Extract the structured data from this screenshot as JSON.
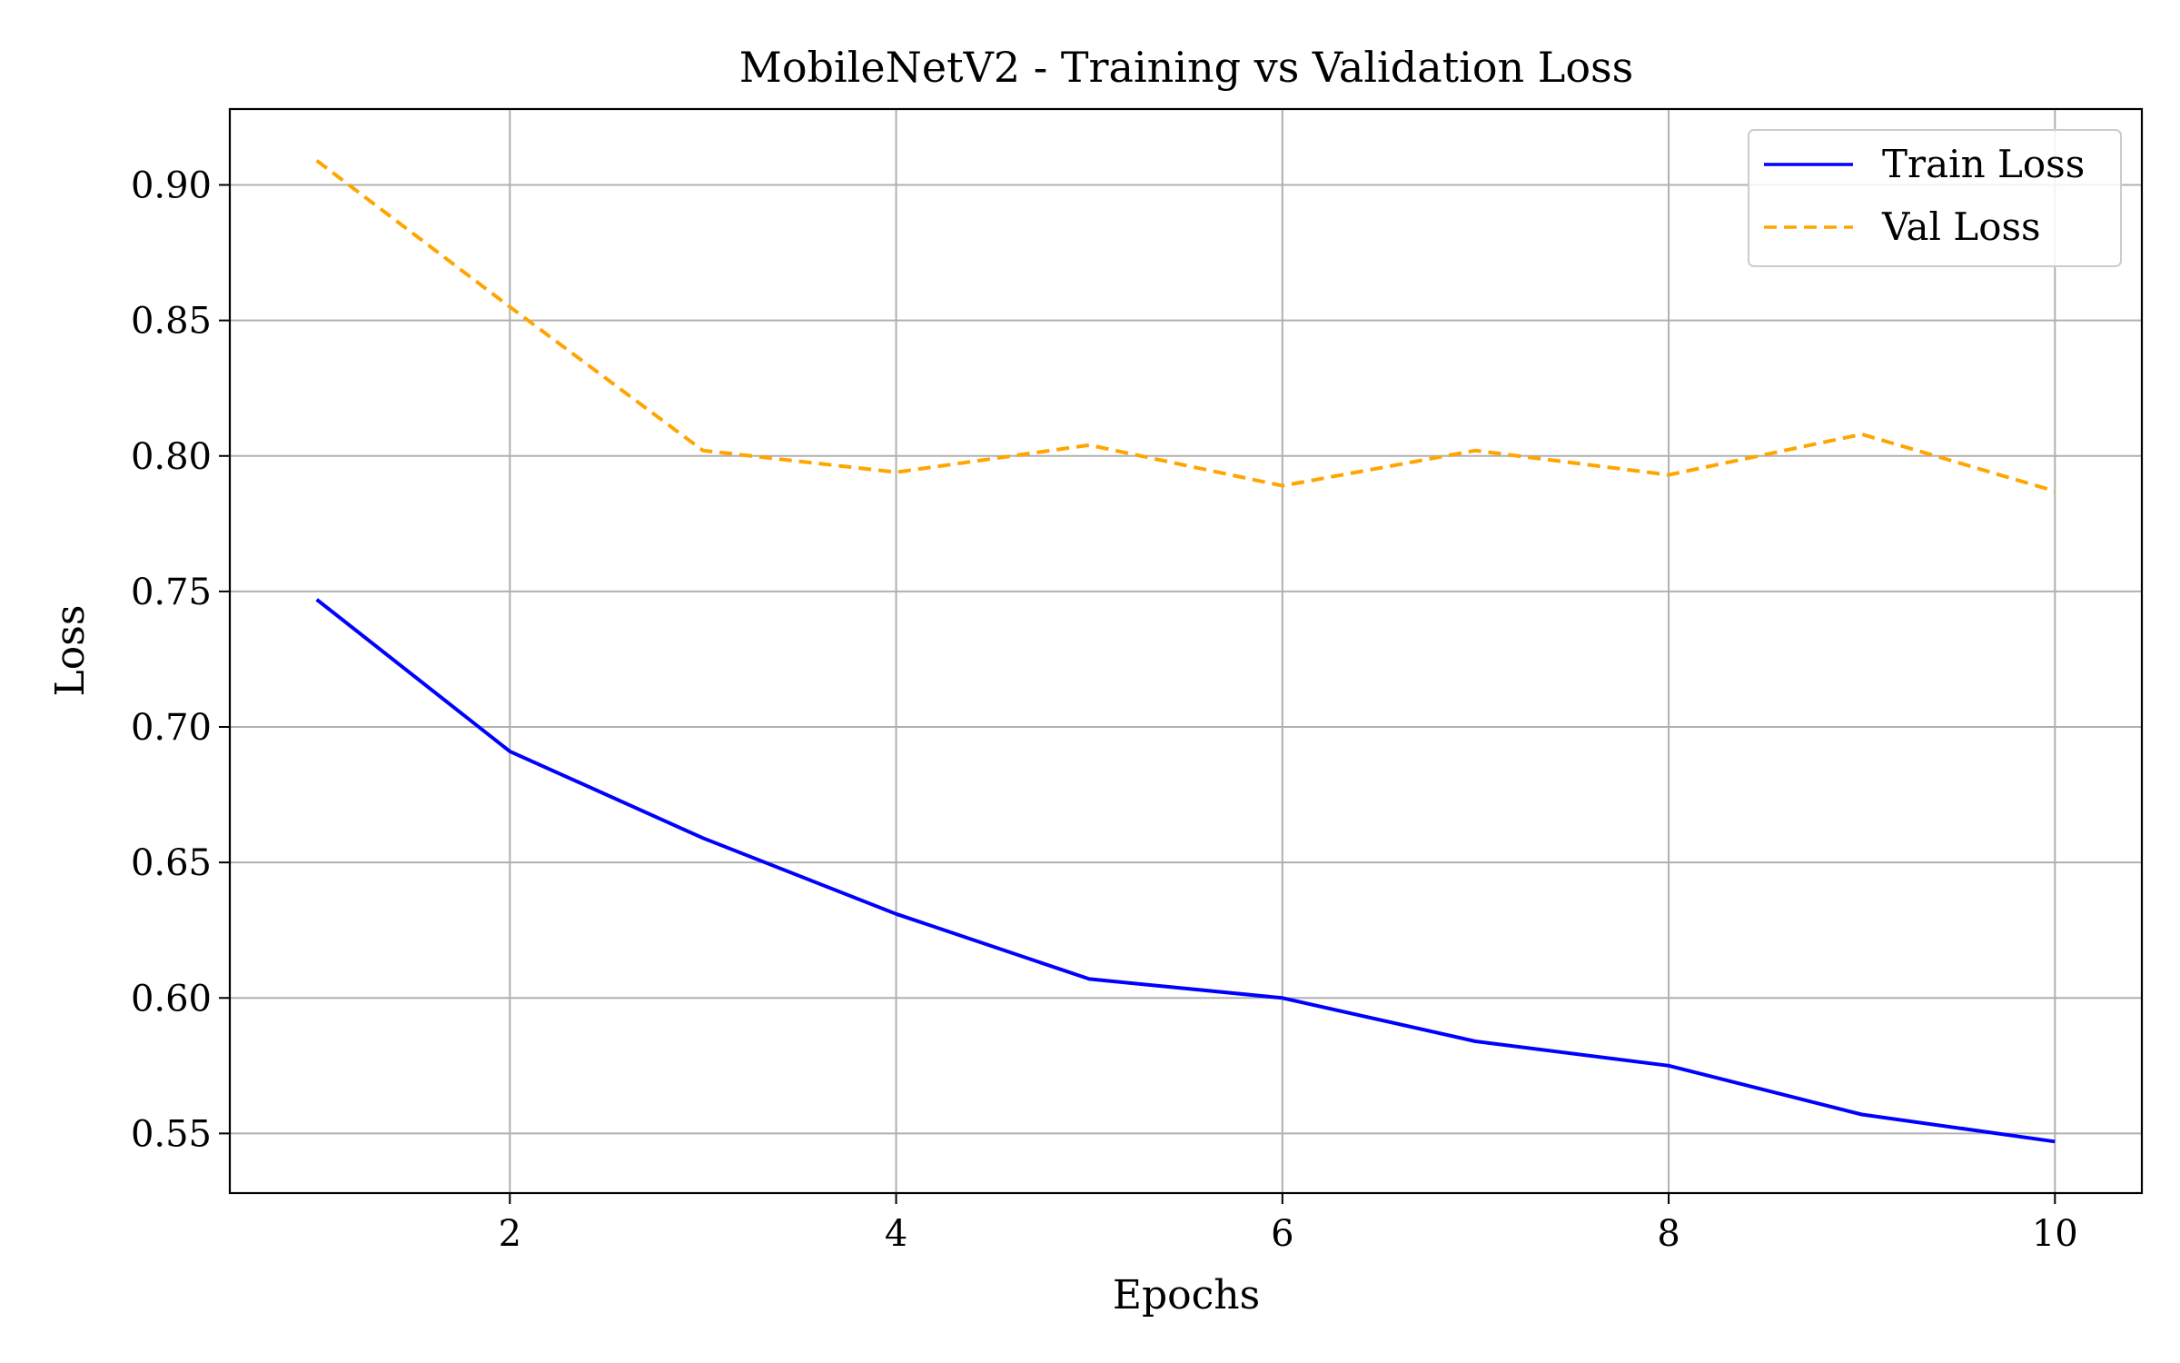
{
  "chart_data": {
    "type": "line",
    "title": "MobileNetV2 - Training vs Validation Loss",
    "xlabel": "Epochs",
    "ylabel": "Loss",
    "x": [
      1,
      2,
      3,
      4,
      5,
      6,
      7,
      8,
      9,
      10
    ],
    "xlim": [
      0.55,
      10.45
    ],
    "ylim": [
      0.528,
      0.928
    ],
    "xticks": [
      2,
      4,
      6,
      8,
      10
    ],
    "yticks": [
      0.55,
      0.6,
      0.65,
      0.7,
      0.75,
      0.8,
      0.85,
      0.9
    ],
    "grid": true,
    "legend_position": "top-right",
    "series": [
      {
        "name": "Train Loss",
        "color": "#0000ff",
        "line_style": "solid",
        "values": [
          0.747,
          0.691,
          0.659,
          0.631,
          0.607,
          0.6,
          0.584,
          0.575,
          0.557,
          0.547
        ]
      },
      {
        "name": "Val Loss",
        "color": "#ffa500",
        "line_style": "dashed",
        "values": [
          0.909,
          0.855,
          0.802,
          0.794,
          0.804,
          0.789,
          0.802,
          0.793,
          0.808,
          0.787
        ]
      }
    ]
  }
}
